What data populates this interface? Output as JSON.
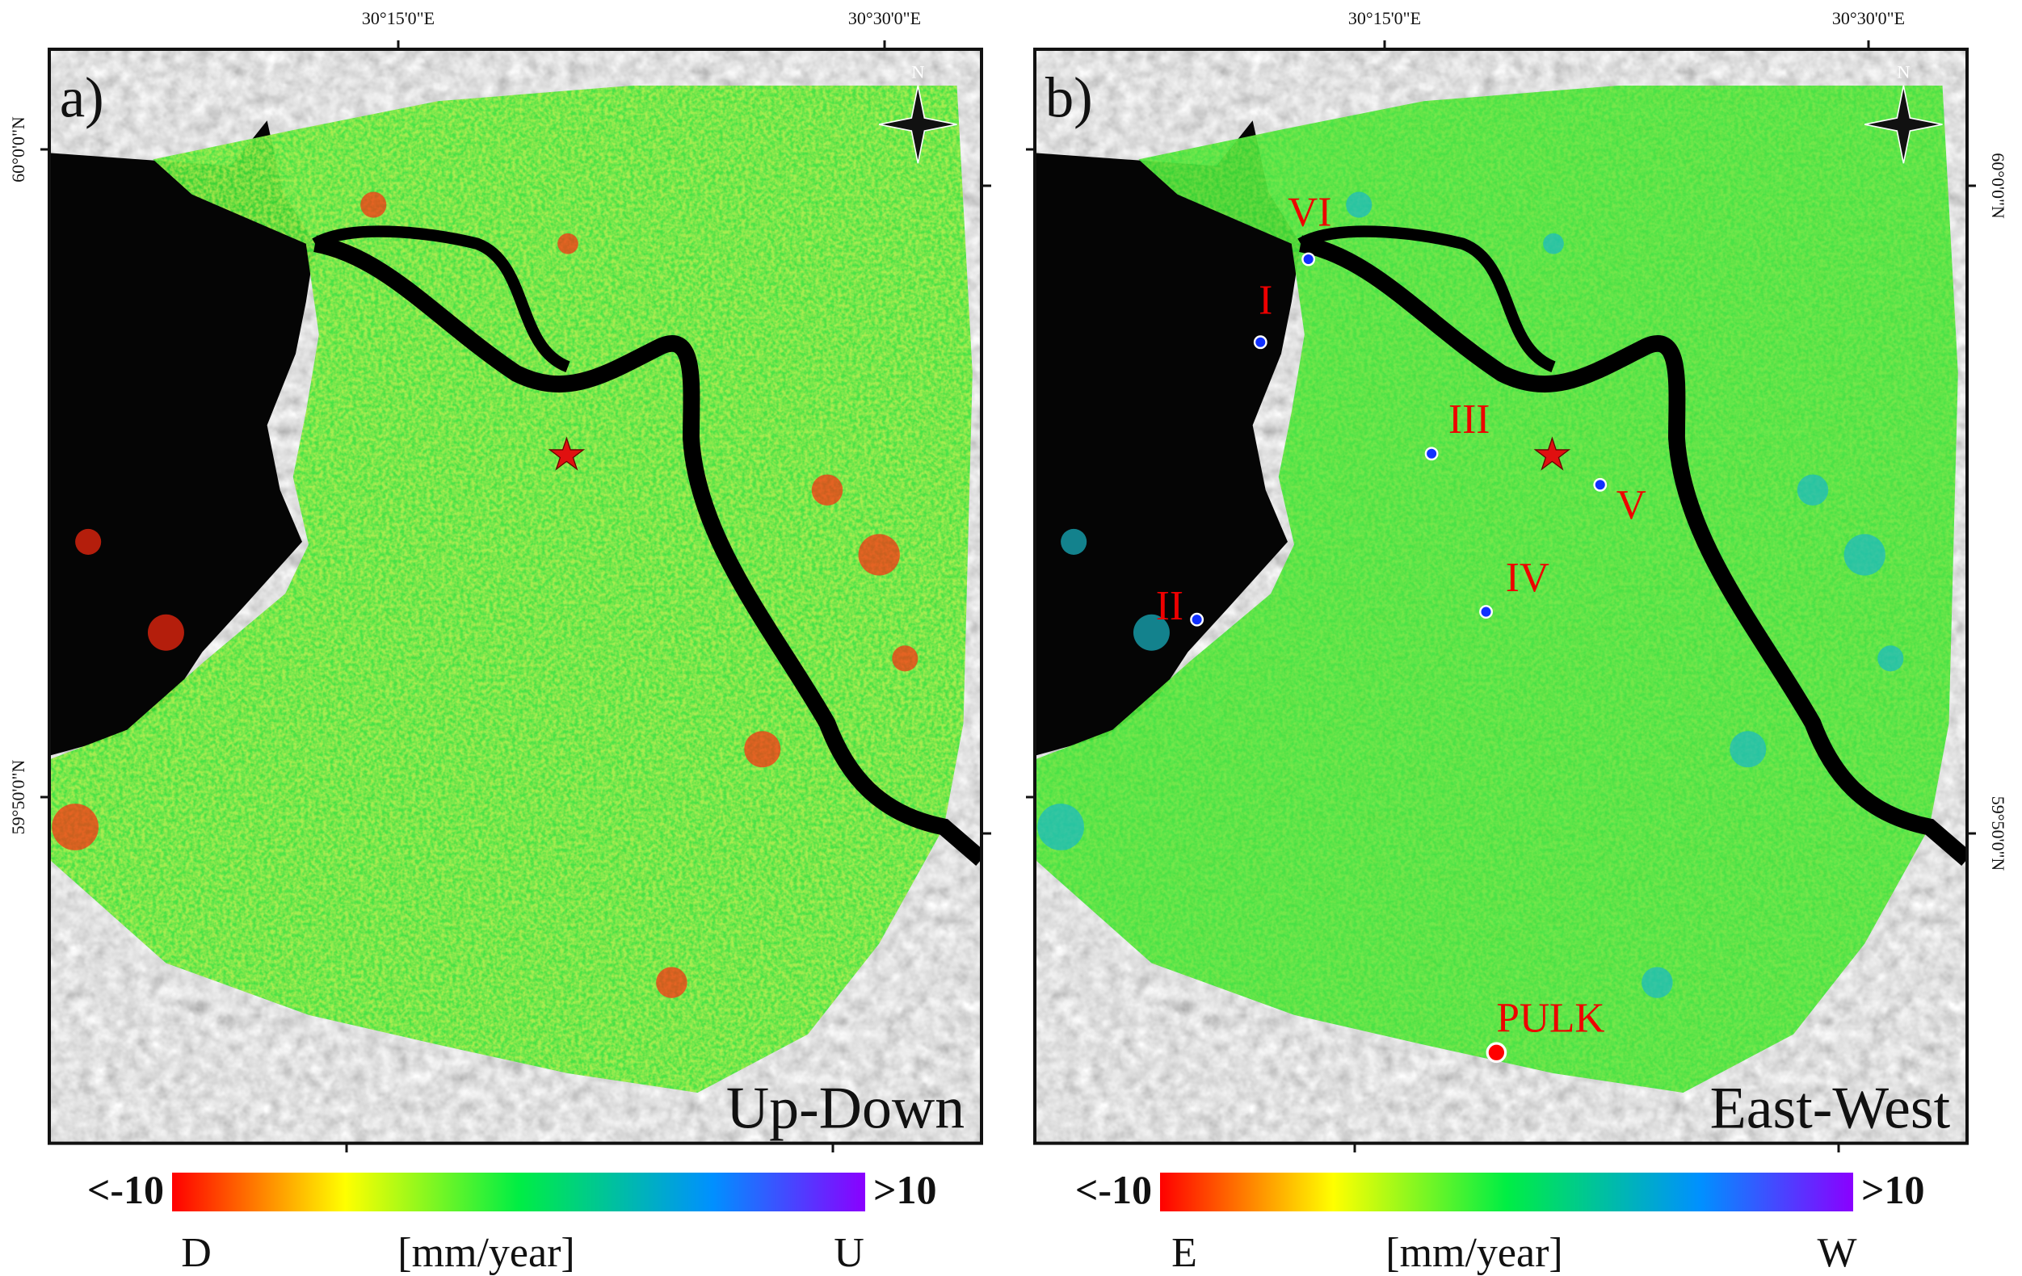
{
  "panels": [
    {
      "label": "a)",
      "title": "Up-Down",
      "top_ticks": [
        "30°15'0\"E",
        "30°30'0\"E"
      ],
      "side_ticks": [
        "60°0'0\"N",
        "59°50'0\"N"
      ],
      "compass": "N",
      "colorbar": {
        "low": "<-10",
        "high": ">10",
        "unit": "[mm/year]",
        "low_name": "D",
        "high_name": "U"
      }
    },
    {
      "label": "b)",
      "title": "East-West",
      "top_ticks": [
        "30°15'0\"E",
        "30°30'0\"E"
      ],
      "side_ticks": [
        "60°0'0\"N",
        "59°50'0\"N"
      ],
      "compass": "N",
      "colorbar": {
        "low": "<-10",
        "high": ">10",
        "unit": "[mm/year]",
        "low_name": "E",
        "high_name": "W"
      },
      "sites": [
        "VI",
        "I",
        "III",
        "V",
        "IV",
        "II"
      ],
      "station": "PULK"
    }
  ]
}
